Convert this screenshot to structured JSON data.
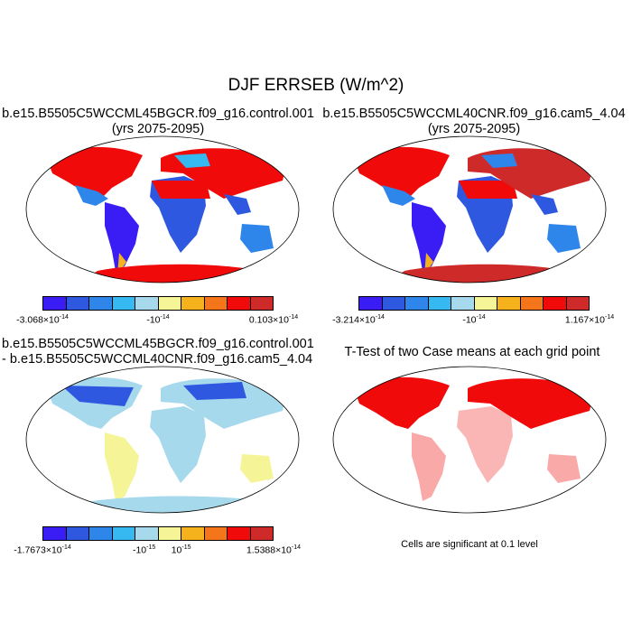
{
  "main_title": "DJF ERRSEB (W/m^2)",
  "panels": [
    {
      "id": "case1",
      "title_lines": [
        "b.e15.B5505C5WCCML45BGCR.f09_g16.control.001",
        "(yrs 2075-2095)"
      ]
    },
    {
      "id": "case2",
      "title_lines": [
        "b.e15.B5505C5WCCML40CNR.f09_g16.cam5_4.04",
        "(yrs 2075-2095)"
      ]
    },
    {
      "id": "diff",
      "title_lines": [
        "b.e15.B5505C5WCCML45BGCR.f09_g16.control.001",
        "- b.e15.B5505C5WCCML40CNR.f09_g16.cam5_4.04"
      ]
    },
    {
      "id": "ttest",
      "title_lines": [
        "T-Test of two Case means at each grid point"
      ]
    }
  ],
  "colorbar_colors": [
    "#3a1cf5",
    "#2f58e0",
    "#2f86ea",
    "#36b8f0",
    "#a7d9ec",
    "#f5f598",
    "#f5b21d",
    "#f5761a",
    "#f00a0a",
    "#cf2a2a"
  ],
  "colorbars": [
    {
      "id": "cb1",
      "labels": [
        {
          "base": "-3.068×10",
          "exp": "-14"
        },
        {
          "base": "-10",
          "exp": "-14"
        },
        {
          "base": "0.103×10",
          "exp": "-14"
        }
      ]
    },
    {
      "id": "cb2",
      "labels": [
        {
          "base": "-3.214×10",
          "exp": "-14"
        },
        {
          "base": "-10",
          "exp": "-14"
        },
        {
          "base": "1.167×10",
          "exp": "-14"
        }
      ]
    },
    {
      "id": "cb3",
      "labels": [
        {
          "base": "-1.7673×10",
          "exp": "-14"
        },
        {
          "base": "-10",
          "exp": "-15"
        },
        {
          "base": "10",
          "exp": "-15"
        },
        {
          "base": "1.5388×10",
          "exp": "-14"
        }
      ]
    }
  ],
  "ttest_note": "Cells are significant at 0.1 level"
}
